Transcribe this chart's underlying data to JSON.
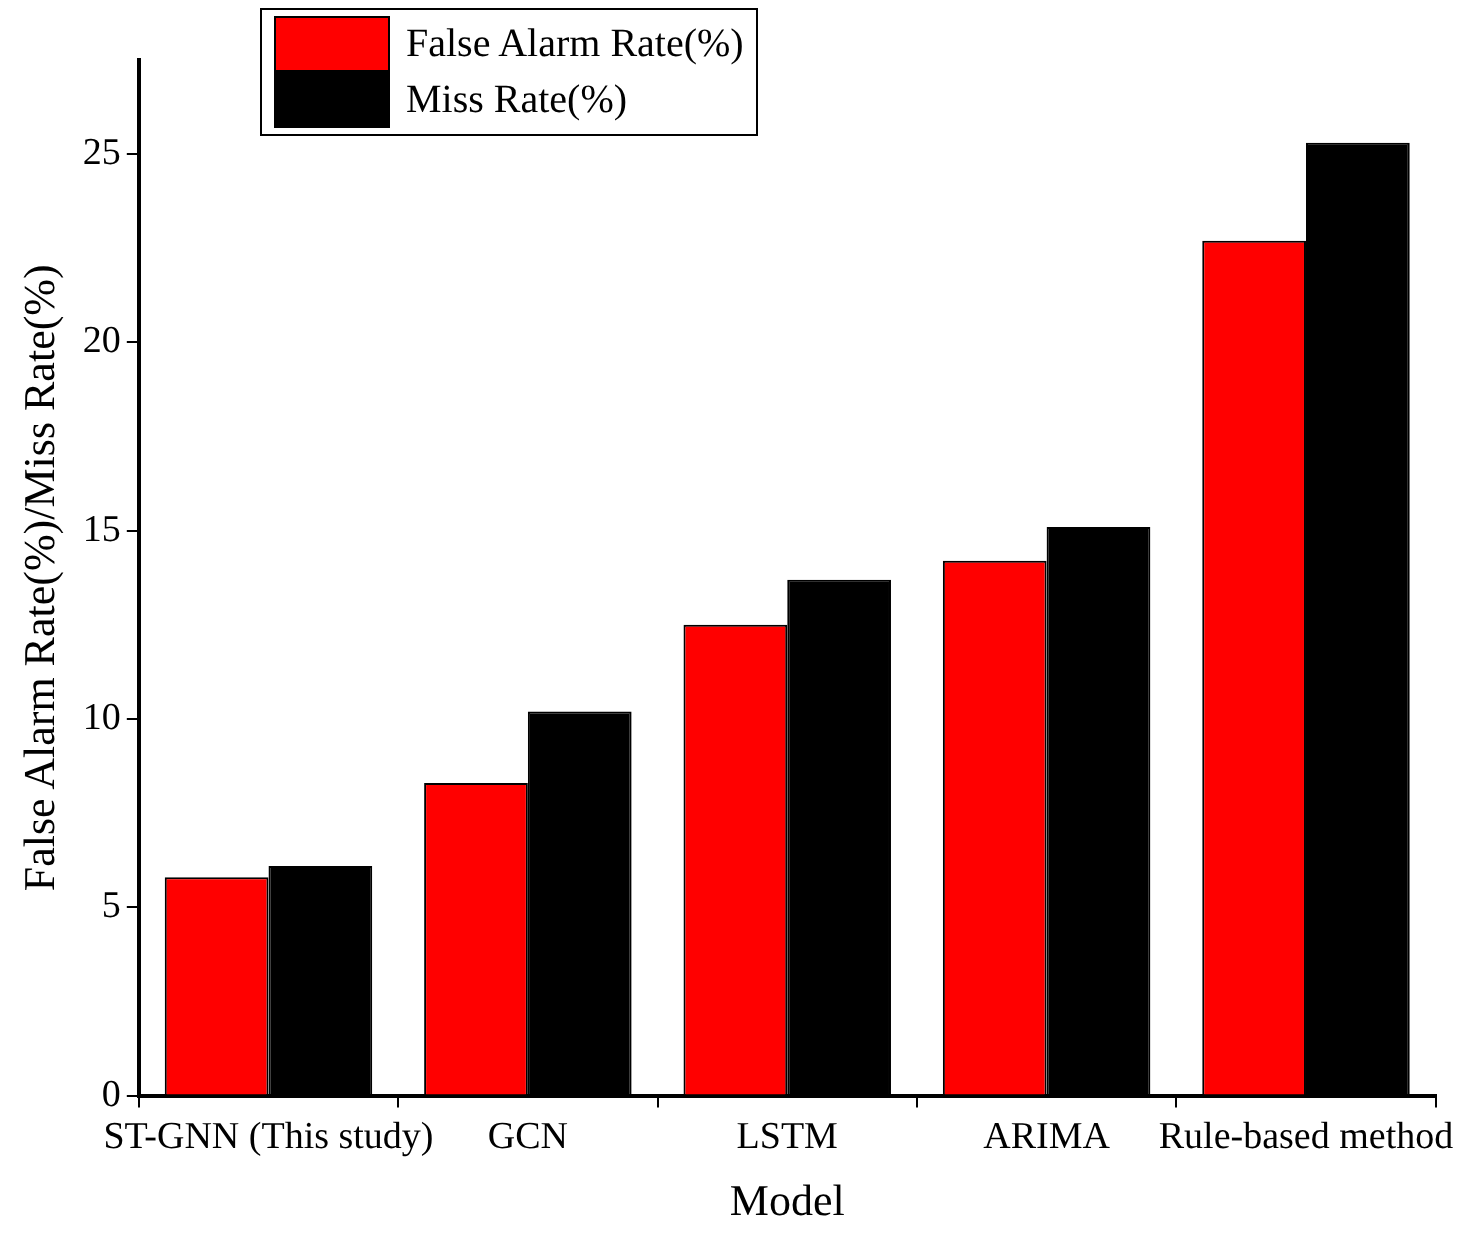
{
  "chart_data": {
    "type": "bar",
    "xlabel": "Model",
    "ylabel": "False Alarm Rate(%)/Miss Rate(%)",
    "categories": [
      "ST-GNN (This study)",
      "GCN",
      "LSTM",
      "ARIMA",
      "Rule-based method"
    ],
    "series": [
      {
        "name": "False Alarm Rate(%)",
        "color": "#ff0000",
        "values": [
          5.8,
          8.3,
          12.5,
          14.2,
          22.7
        ]
      },
      {
        "name": "Miss Rate(%)",
        "color": "#000000",
        "values": [
          6.1,
          10.2,
          13.7,
          15.1,
          25.3
        ]
      }
    ],
    "ylim": [
      0,
      27.5
    ],
    "yticks": [
      0,
      5,
      10,
      15,
      20,
      25
    ],
    "legend": "top left"
  }
}
